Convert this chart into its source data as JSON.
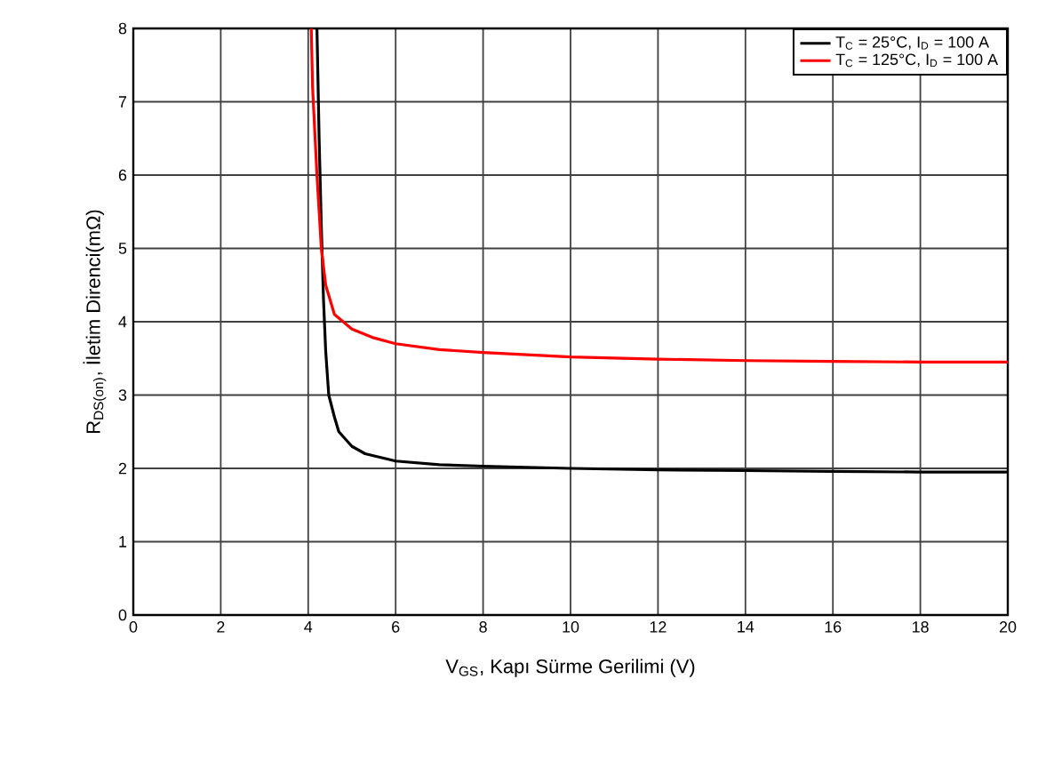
{
  "chart_data": {
    "type": "line",
    "xlabel": "V$_{GS}$, Kapı Sürme Gerilimi (V)",
    "ylabel": "R$_{DS(on)}$, İletim Direnci(mΩ)",
    "xlim": [
      0,
      20
    ],
    "ylim": [
      0,
      8
    ],
    "xticks": [
      0,
      2,
      4,
      6,
      8,
      10,
      12,
      14,
      16,
      18,
      20
    ],
    "yticks": [
      0,
      1,
      2,
      3,
      4,
      5,
      6,
      7,
      8
    ],
    "grid": true,
    "legend": "top right",
    "marker": "none",
    "line_style": "solid",
    "series": [
      {
        "name": "T$_{C}$ = 25°C, I$_{D}$ = 100 A",
        "color": "#000000",
        "x": [
          4.2,
          4.25,
          4.3,
          4.35,
          4.4,
          4.47,
          4.6,
          4.7,
          5.0,
          5.3,
          6,
          7,
          8,
          10,
          12,
          14,
          16,
          18,
          20
        ],
        "values": [
          8,
          6.5,
          5.3,
          4.3,
          3.6,
          3.0,
          2.7,
          2.5,
          2.3,
          2.2,
          2.1,
          2.05,
          2.03,
          2.0,
          1.98,
          1.97,
          1.96,
          1.95,
          1.95
        ]
      },
      {
        "name": "T$_{C}$ = 125°C, I$_{D}$ = 100 A",
        "color": "#ff0000",
        "x": [
          4.07,
          4.1,
          4.15,
          4.2,
          4.3,
          4.4,
          4.6,
          5.0,
          5.5,
          6,
          7,
          8,
          10,
          12,
          14,
          16,
          18,
          20
        ],
        "values": [
          8,
          7.2,
          6.6,
          6.0,
          5.0,
          4.5,
          4.1,
          3.9,
          3.78,
          3.7,
          3.62,
          3.58,
          3.52,
          3.49,
          3.47,
          3.46,
          3.45,
          3.45
        ]
      }
    ]
  }
}
